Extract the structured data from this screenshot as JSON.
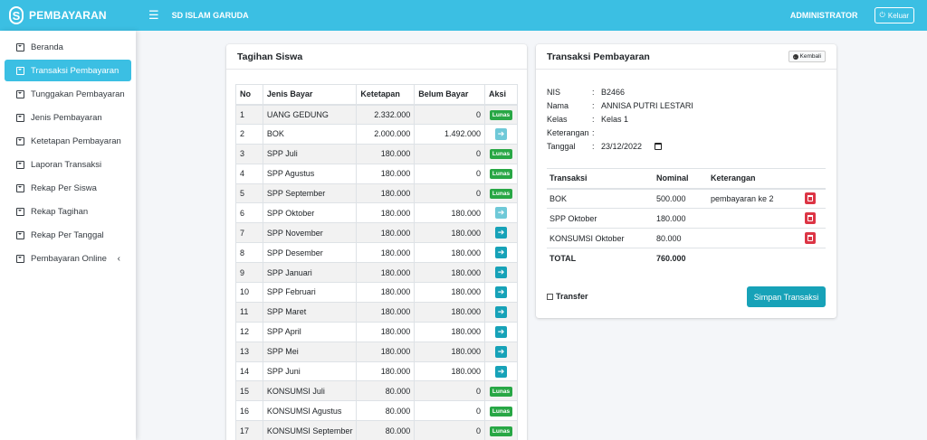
{
  "brand": {
    "logo": "S",
    "name": "PEMBAYARAN"
  },
  "topbar": {
    "menu_icon": "bars-icon",
    "school": "SD ISLAM GARUDA",
    "user": "ADMINISTRATOR",
    "logout": "Keluar"
  },
  "colors": {
    "primary": "#3bbfe3",
    "info": "#17a2b8",
    "success": "#28a745",
    "danger": "#dc3545"
  },
  "sidebar": {
    "items": [
      {
        "label": "Beranda"
      },
      {
        "label": "Transaksi Pembayaran",
        "active": true
      },
      {
        "label": "Tunggakan Pembayaran"
      },
      {
        "label": "Jenis Pembayaran"
      },
      {
        "label": "Ketetapan Pembayaran"
      },
      {
        "label": "Laporan Transaksi"
      },
      {
        "label": "Rekap Per Siswa"
      },
      {
        "label": "Rekap Tagihan"
      },
      {
        "label": "Rekap Per Tanggal"
      },
      {
        "label": "Pembayaran Online",
        "chevron": "‹"
      }
    ]
  },
  "tagihan": {
    "title": "Tagihan Siswa",
    "columns": [
      "No",
      "Jenis Bayar",
      "Ketetapan",
      "Belum Bayar",
      "Aksi"
    ],
    "lunas_label": "Lunas",
    "rows": [
      {
        "no": "1",
        "jenis": "UANG GEDUNG",
        "ketetapan": "2.332.000",
        "belum": "0",
        "status": "lunas"
      },
      {
        "no": "2",
        "jenis": "BOK",
        "ketetapan": "2.000.000",
        "belum": "1.492.000",
        "status": "pay-light"
      },
      {
        "no": "3",
        "jenis": "SPP Juli",
        "ketetapan": "180.000",
        "belum": "0",
        "status": "lunas"
      },
      {
        "no": "4",
        "jenis": "SPP Agustus",
        "ketetapan": "180.000",
        "belum": "0",
        "status": "lunas"
      },
      {
        "no": "5",
        "jenis": "SPP September",
        "ketetapan": "180.000",
        "belum": "0",
        "status": "lunas"
      },
      {
        "no": "6",
        "jenis": "SPP Oktober",
        "ketetapan": "180.000",
        "belum": "180.000",
        "status": "pay-light"
      },
      {
        "no": "7",
        "jenis": "SPP November",
        "ketetapan": "180.000",
        "belum": "180.000",
        "status": "pay"
      },
      {
        "no": "8",
        "jenis": "SPP Desember",
        "ketetapan": "180.000",
        "belum": "180.000",
        "status": "pay"
      },
      {
        "no": "9",
        "jenis": "SPP Januari",
        "ketetapan": "180.000",
        "belum": "180.000",
        "status": "pay"
      },
      {
        "no": "10",
        "jenis": "SPP Februari",
        "ketetapan": "180.000",
        "belum": "180.000",
        "status": "pay"
      },
      {
        "no": "11",
        "jenis": "SPP Maret",
        "ketetapan": "180.000",
        "belum": "180.000",
        "status": "pay"
      },
      {
        "no": "12",
        "jenis": "SPP April",
        "ketetapan": "180.000",
        "belum": "180.000",
        "status": "pay"
      },
      {
        "no": "13",
        "jenis": "SPP Mei",
        "ketetapan": "180.000",
        "belum": "180.000",
        "status": "pay"
      },
      {
        "no": "14",
        "jenis": "SPP Juni",
        "ketetapan": "180.000",
        "belum": "180.000",
        "status": "pay"
      },
      {
        "no": "15",
        "jenis": "KONSUMSI Juli",
        "ketetapan": "80.000",
        "belum": "0",
        "status": "lunas"
      },
      {
        "no": "16",
        "jenis": "KONSUMSI Agustus",
        "ketetapan": "80.000",
        "belum": "0",
        "status": "lunas"
      },
      {
        "no": "17",
        "jenis": "KONSUMSI September",
        "ketetapan": "80.000",
        "belum": "0",
        "status": "lunas"
      }
    ]
  },
  "transaksi": {
    "title": "Transaksi Pembayaran",
    "back": "Kembali",
    "info": [
      {
        "label": "NIS",
        "value": "B2466"
      },
      {
        "label": "Nama",
        "value": "ANNISA PUTRI LESTARI"
      },
      {
        "label": "Kelas",
        "value": "Kelas 1"
      },
      {
        "label": "Keterangan",
        "value": ""
      }
    ],
    "tanggal_label": "Tanggal",
    "tanggal_value": "23/12/2022",
    "columns": [
      "Transaksi",
      "Nominal",
      "Keterangan"
    ],
    "rows": [
      {
        "transaksi": "BOK",
        "nominal": "500.000",
        "keterangan": "pembayaran ke 2"
      },
      {
        "transaksi": "SPP Oktober",
        "nominal": "180.000",
        "keterangan": ""
      },
      {
        "transaksi": "KONSUMSI Oktober",
        "nominal": "80.000",
        "keterangan": ""
      }
    ],
    "total_label": "TOTAL",
    "total_value": "760.000",
    "transfer_label": "Transfer",
    "save_label": "Simpan Transaksi"
  }
}
